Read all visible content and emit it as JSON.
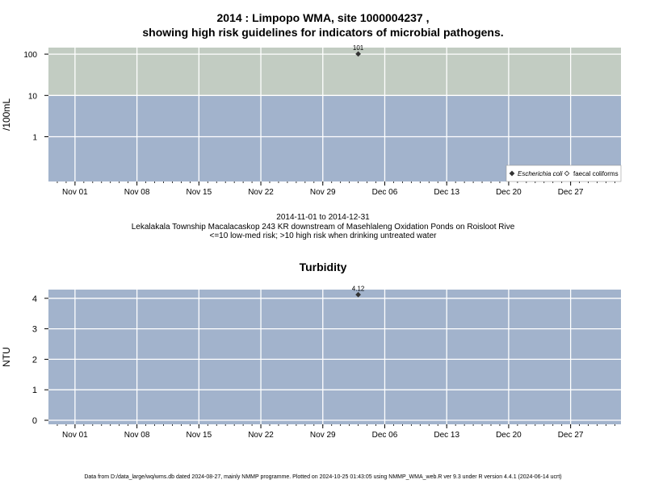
{
  "chart_data": [
    {
      "type": "scatter",
      "title_line1": "2014 : Limpopo WMA, site 1000004237 ,",
      "title_line2": "showing high risk guidelines for indicators of microbial pathogens.",
      "ylabel": "/100mL",
      "y_scale": "log",
      "y_ticks": [
        "1",
        "10",
        "100"
      ],
      "x_ticks": [
        "Nov 01",
        "Nov 08",
        "Nov 15",
        "Nov 22",
        "Nov 29",
        "Dec 06",
        "Dec 13",
        "Dec 20",
        "Dec 27"
      ],
      "guideline_zones": [
        {
          "range": "<=10",
          "meaning": "low-med risk",
          "color": "#a2b3cc"
        },
        {
          "range": ">10",
          "meaning": "high risk",
          "color": "#c2ccc2"
        }
      ],
      "series": [
        {
          "name": "Escherichia coli",
          "marker": "filled-diamond",
          "points": [
            {
              "x": "2014-12-03",
              "y": 101,
              "label": "101"
            }
          ]
        },
        {
          "name": "faecal coliforms",
          "marker": "open-diamond",
          "points": []
        }
      ],
      "legend_position": "bottom-right",
      "grid": true
    },
    {
      "type": "scatter",
      "title": "Turbidity",
      "ylabel": "NTU",
      "y_ticks": [
        "0",
        "1",
        "2",
        "3",
        "4"
      ],
      "ylim": [
        -0.1,
        4.3
      ],
      "x_ticks": [
        "Nov 01",
        "Nov 08",
        "Nov 15",
        "Nov 22",
        "Nov 29",
        "Dec 06",
        "Dec 13",
        "Dec 20",
        "Dec 27"
      ],
      "series": [
        {
          "marker": "filled-diamond",
          "points": [
            {
              "x": "2014-12-03",
              "y": 4.12,
              "label": "4.12"
            }
          ]
        }
      ],
      "grid": true
    }
  ],
  "caption": {
    "date_range": "2014-11-01 to 2014-12-31",
    "site_description": "Lekalakala Township Macalacaskop 243 KR downstream of Masehlaleng Oxidation Ponds on Roisloot Rive",
    "risk_note": "<=10 low-med risk; >10 high risk when drinking untreated water"
  },
  "footer": "Data from D:/data_large/wq/wms.db dated 2024-08-27, mainly NMMP programme. Plotted on 2024-10-25 01:43:05 using NMMP_WMA_web.R ver 9.3 under R version 4.4.1 (2024-06-14 ucrt)",
  "colors": {
    "panel_bg": "#a2b3cc",
    "high_risk_bg": "#c2ccc2",
    "grid": "#ffffff",
    "point": "#333333"
  }
}
